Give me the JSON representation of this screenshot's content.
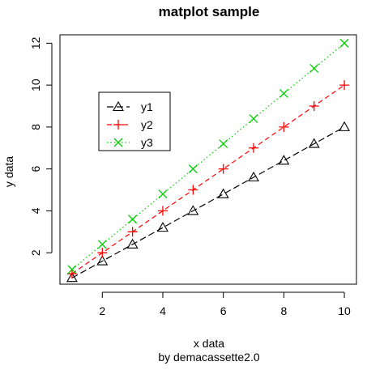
{
  "chart_data": {
    "type": "line",
    "title": "matplot sample",
    "subtitle": "by demacassette2.0",
    "xlabel": "x data",
    "ylabel": "y data",
    "xlim": [
      0.6,
      10.4
    ],
    "ylim": [
      0.5,
      12.4
    ],
    "x_ticks": [
      "2",
      "4",
      "6",
      "8",
      "10"
    ],
    "y_ticks": [
      "2",
      "4",
      "6",
      "8",
      "10",
      "12"
    ],
    "x": [
      1,
      2,
      3,
      4,
      5,
      6,
      7,
      8,
      9,
      10
    ],
    "legend_position": "top-left",
    "series": [
      {
        "name": "y1",
        "color": "#000000",
        "line": "longdash",
        "marker": "triangle",
        "values": [
          0.8,
          1.6,
          2.4,
          3.2,
          4.0,
          4.8,
          5.6,
          6.4,
          7.2,
          8.0
        ]
      },
      {
        "name": "y2",
        "color": "#ff0000",
        "line": "dashed",
        "marker": "plus",
        "values": [
          1.0,
          2.0,
          3.0,
          4.0,
          5.0,
          6.0,
          7.0,
          8.0,
          9.0,
          10.0
        ]
      },
      {
        "name": "y3",
        "color": "#00cd00",
        "line": "dotted",
        "marker": "cross",
        "values": [
          1.2,
          2.4,
          3.6,
          4.8,
          6.0,
          7.2,
          8.4,
          9.6,
          10.8,
          12.0
        ]
      }
    ]
  }
}
